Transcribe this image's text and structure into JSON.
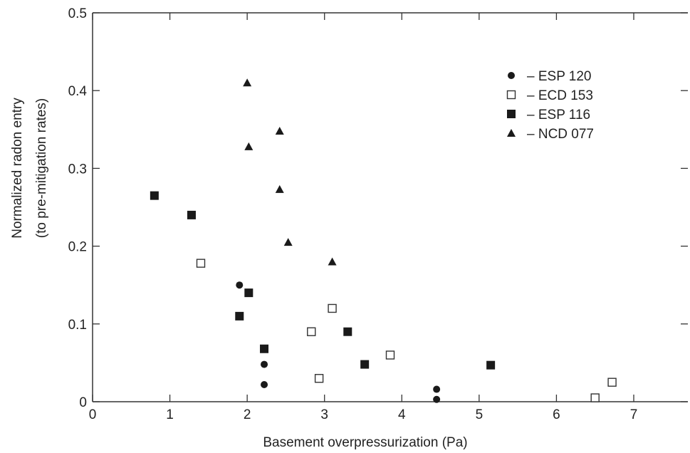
{
  "chart_data": {
    "type": "scatter",
    "xlabel": "Basement overpressurization (Pa)",
    "ylabel_lines": [
      "Normalized radon entry",
      "(to pre-mitigation rates)"
    ],
    "xlim": [
      0,
      7.7
    ],
    "ylim": [
      0,
      0.5
    ],
    "x_ticks": [
      0,
      1,
      2,
      3,
      4,
      5,
      6,
      7
    ],
    "x_tick_labels": [
      "0",
      "1",
      "2",
      "3",
      "4",
      "5",
      "6",
      "7"
    ],
    "y_ticks": [
      0,
      0.1,
      0.2,
      0.3,
      0.4,
      0.5
    ],
    "y_tick_labels": [
      "0",
      "0.1",
      "0.2",
      "0.3",
      "0.4",
      "0.5"
    ],
    "grid": false,
    "legend_position": "top-right",
    "series": [
      {
        "name": "– ESP 120",
        "marker": "filled-circle",
        "points": [
          {
            "x": 1.9,
            "y": 0.15
          },
          {
            "x": 2.22,
            "y": 0.048
          },
          {
            "x": 2.22,
            "y": 0.022
          },
          {
            "x": 4.45,
            "y": 0.016
          },
          {
            "x": 4.45,
            "y": 0.003
          }
        ]
      },
      {
        "name": "– ECD 153",
        "marker": "open-square",
        "points": [
          {
            "x": 1.4,
            "y": 0.178
          },
          {
            "x": 3.1,
            "y": 0.12
          },
          {
            "x": 2.83,
            "y": 0.09
          },
          {
            "x": 3.85,
            "y": 0.06
          },
          {
            "x": 2.93,
            "y": 0.03
          },
          {
            "x": 6.72,
            "y": 0.025
          },
          {
            "x": 6.5,
            "y": 0.005
          }
        ]
      },
      {
        "name": "– ESP 116",
        "marker": "filled-square",
        "points": [
          {
            "x": 0.8,
            "y": 0.265
          },
          {
            "x": 1.28,
            "y": 0.24
          },
          {
            "x": 2.02,
            "y": 0.14
          },
          {
            "x": 1.9,
            "y": 0.11
          },
          {
            "x": 2.22,
            "y": 0.068
          },
          {
            "x": 3.3,
            "y": 0.09
          },
          {
            "x": 3.52,
            "y": 0.048
          },
          {
            "x": 5.15,
            "y": 0.047
          }
        ]
      },
      {
        "name": "– NCD 077",
        "marker": "filled-triangle",
        "points": [
          {
            "x": 2.0,
            "y": 0.41
          },
          {
            "x": 2.42,
            "y": 0.348
          },
          {
            "x": 2.02,
            "y": 0.328
          },
          {
            "x": 2.42,
            "y": 0.273
          },
          {
            "x": 2.53,
            "y": 0.205
          },
          {
            "x": 3.1,
            "y": 0.18
          }
        ]
      }
    ]
  }
}
